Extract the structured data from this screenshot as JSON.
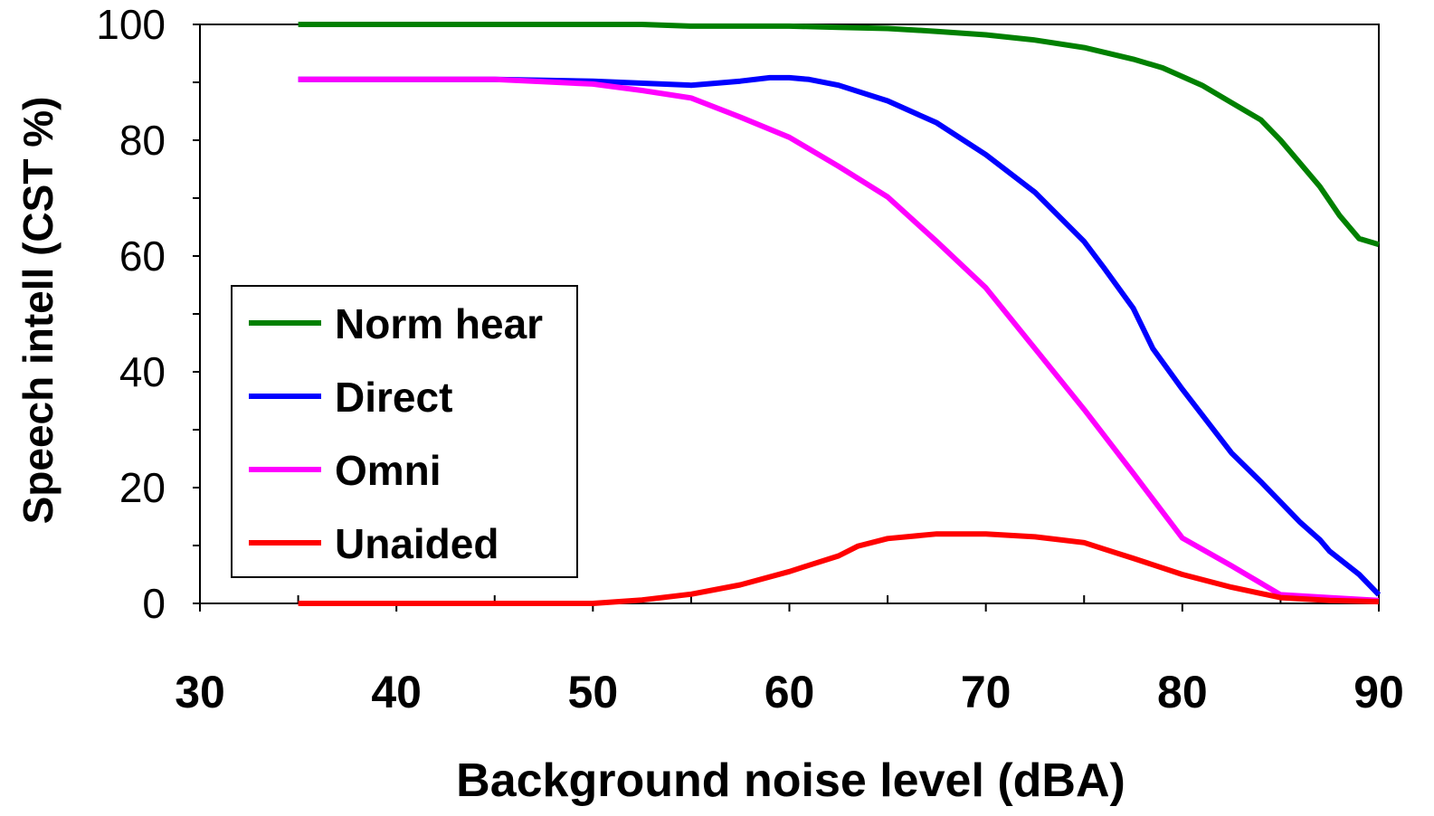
{
  "chart_data": {
    "type": "line",
    "xlabel": "Background noise level (dBA)",
    "ylabel": "Speech intell (CST %)",
    "xlim": [
      30,
      90
    ],
    "ylim": [
      0,
      100
    ],
    "xticks": [
      30,
      40,
      50,
      60,
      70,
      80,
      90
    ],
    "yticks": [
      0,
      20,
      40,
      60,
      80,
      100
    ],
    "grid": false,
    "legend_position": "left-middle",
    "series": [
      {
        "name": "Norm hear",
        "color": "#008000",
        "points": [
          [
            35,
            100
          ],
          [
            40,
            100
          ],
          [
            45,
            100
          ],
          [
            50,
            100
          ],
          [
            52.5,
            100
          ],
          [
            55,
            99.7
          ],
          [
            57.5,
            99.7
          ],
          [
            60,
            99.7
          ],
          [
            62.5,
            99.5
          ],
          [
            65,
            99.3
          ],
          [
            67.5,
            98.8
          ],
          [
            70,
            98.2
          ],
          [
            72.5,
            97.3
          ],
          [
            75,
            96
          ],
          [
            77.5,
            94
          ],
          [
            79,
            92.5
          ],
          [
            80,
            91
          ],
          [
            81,
            89.5
          ],
          [
            82.5,
            86.5
          ],
          [
            84,
            83.5
          ],
          [
            85,
            80
          ],
          [
            86,
            76
          ],
          [
            87,
            72
          ],
          [
            88,
            67
          ],
          [
            89,
            63
          ],
          [
            90,
            62
          ]
        ]
      },
      {
        "name": "Direct",
        "color": "#0000ff",
        "points": [
          [
            35,
            90.5
          ],
          [
            40,
            90.5
          ],
          [
            45,
            90.5
          ],
          [
            50,
            90.2
          ],
          [
            55,
            89.5
          ],
          [
            57.5,
            90.2
          ],
          [
            59,
            90.8
          ],
          [
            60,
            90.8
          ],
          [
            61,
            90.5
          ],
          [
            62.5,
            89.5
          ],
          [
            65,
            86.8
          ],
          [
            67.5,
            83
          ],
          [
            70,
            77.5
          ],
          [
            72.5,
            71
          ],
          [
            75,
            62.5
          ],
          [
            76,
            58
          ],
          [
            77.5,
            51
          ],
          [
            78.5,
            44
          ],
          [
            80,
            37
          ],
          [
            82.5,
            26
          ],
          [
            84,
            21
          ],
          [
            85,
            17.5
          ],
          [
            86,
            14
          ],
          [
            87,
            11
          ],
          [
            87.5,
            9
          ],
          [
            89,
            5
          ],
          [
            90,
            1.5
          ]
        ]
      },
      {
        "name": "Omni",
        "color": "#ff00ff",
        "points": [
          [
            35,
            90.5
          ],
          [
            40,
            90.5
          ],
          [
            45,
            90.5
          ],
          [
            50,
            89.7
          ],
          [
            52.5,
            88.6
          ],
          [
            55,
            87.3
          ],
          [
            57.5,
            84
          ],
          [
            60,
            80.5
          ],
          [
            62.5,
            75.5
          ],
          [
            65,
            70.2
          ],
          [
            67.5,
            62.5
          ],
          [
            70,
            54.5
          ],
          [
            72.5,
            44
          ],
          [
            75,
            33.5
          ],
          [
            77.5,
            22.5
          ],
          [
            80,
            11.3
          ],
          [
            82.5,
            6.5
          ],
          [
            85,
            1.5
          ],
          [
            87.5,
            1
          ],
          [
            90,
            0.5
          ]
        ]
      },
      {
        "name": "Unaided",
        "color": "#ff0000",
        "points": [
          [
            35,
            0
          ],
          [
            40,
            0
          ],
          [
            45,
            0
          ],
          [
            50,
            0
          ],
          [
            52.5,
            0.6
          ],
          [
            55,
            1.6
          ],
          [
            57.5,
            3.2
          ],
          [
            60,
            5.5
          ],
          [
            61,
            6.6
          ],
          [
            62.5,
            8.2
          ],
          [
            63.5,
            9.9
          ],
          [
            65,
            11.2
          ],
          [
            67.5,
            12
          ],
          [
            70,
            12
          ],
          [
            72.5,
            11.5
          ],
          [
            75,
            10.5
          ],
          [
            76,
            9.4
          ],
          [
            77.5,
            7.8
          ],
          [
            80,
            5
          ],
          [
            82.5,
            2.8
          ],
          [
            85,
            1
          ],
          [
            87.5,
            0.5
          ],
          [
            90,
            0.3
          ]
        ]
      }
    ]
  }
}
